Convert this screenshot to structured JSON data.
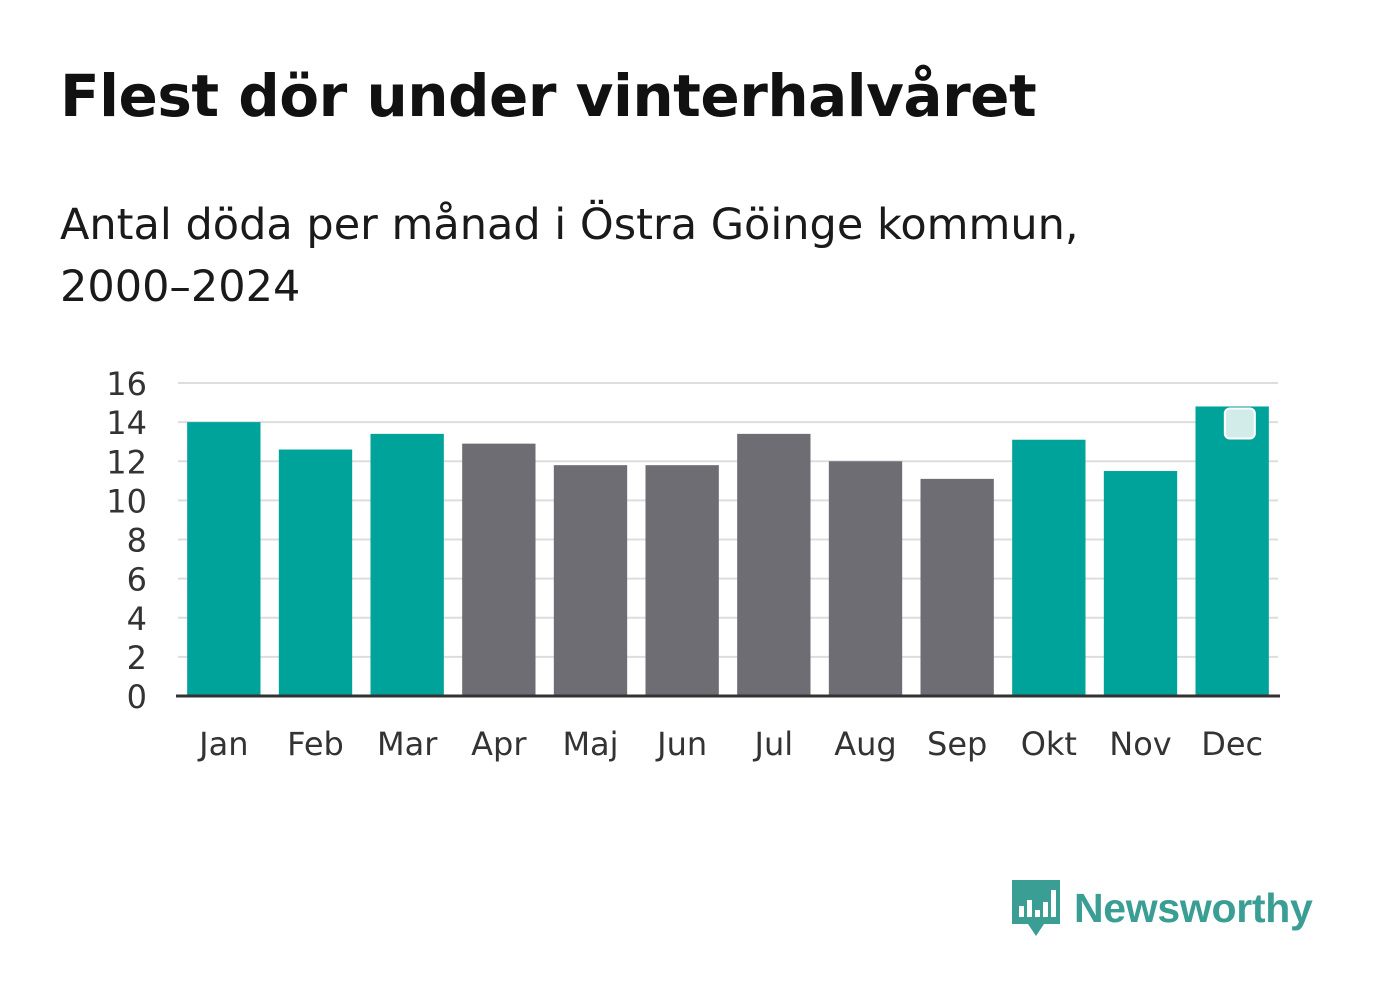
{
  "title": "Flest dör under vinterhalvåret",
  "subtitle": "Antal döda per månad i Östra Göinge kommun, 2000–2024",
  "brand": {
    "name": "Newsworthy",
    "logo_icon": "bar-chart-speech-bubble-icon",
    "color": "#3a9e95"
  },
  "colors": {
    "winter": "#00a39a",
    "summer": "#6e6d73",
    "grid": "#dddddd",
    "axis": "#333333"
  },
  "chart_data": {
    "type": "bar",
    "title": "Flest dör under vinterhalvåret",
    "xlabel": "",
    "ylabel": "",
    "ylim": [
      0,
      16
    ],
    "yticks": [
      0,
      2,
      4,
      6,
      8,
      10,
      12,
      14,
      16
    ],
    "grid": true,
    "categories": [
      "Jan",
      "Feb",
      "Mar",
      "Apr",
      "Maj",
      "Jun",
      "Jul",
      "Aug",
      "Sep",
      "Okt",
      "Nov",
      "Dec"
    ],
    "values": [
      14.0,
      12.6,
      13.4,
      12.9,
      11.8,
      11.8,
      13.4,
      12.0,
      11.1,
      13.1,
      11.5,
      14.8
    ],
    "groups": [
      "winter",
      "winter",
      "winter",
      "summer",
      "summer",
      "summer",
      "summer",
      "summer",
      "summer",
      "winter",
      "winter",
      "winter"
    ],
    "highlight_index": 11
  }
}
